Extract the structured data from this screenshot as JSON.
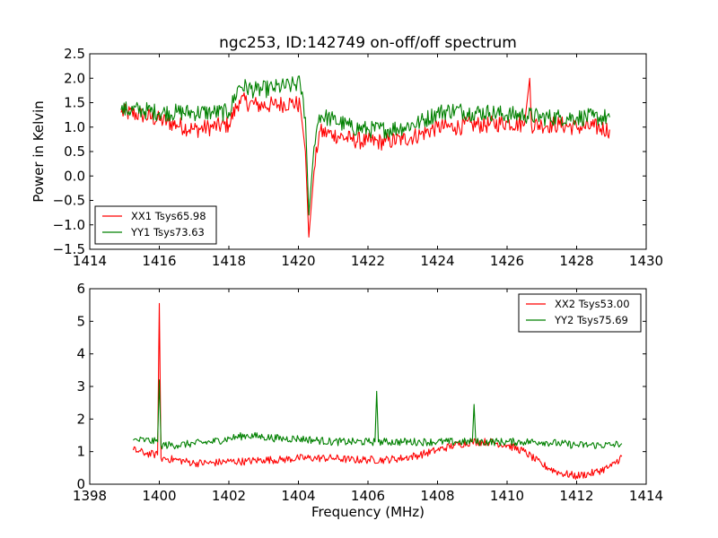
{
  "chart_data": [
    {
      "type": "line",
      "title": "ngc253, ID:142749 on-off/off spectrum",
      "xlabel": "",
      "ylabel": "Power in Kelvin",
      "xlim": [
        1414,
        1430
      ],
      "ylim": [
        -1.5,
        2.5
      ],
      "xticks": [
        "1414",
        "1416",
        "1418",
        "1420",
        "1422",
        "1424",
        "1426",
        "1428",
        "1430"
      ],
      "yticks": [
        "2.5",
        "2.0",
        "1.5",
        "1.0",
        "0.5",
        "0.0",
        "−0.5",
        "−1.0",
        "−1.5"
      ],
      "grid": false,
      "legend_position": "lower-left",
      "series": [
        {
          "name": "XX1 Tsys65.98",
          "color": "#ff0000",
          "x": [
            1414.9,
            1415.5,
            1416.0,
            1416.5,
            1417.0,
            1417.5,
            1418.0,
            1418.3,
            1418.8,
            1419.3,
            1419.8,
            1420.05,
            1420.2,
            1420.3,
            1420.45,
            1420.6,
            1421.0,
            1421.5,
            1422.0,
            1422.5,
            1423.0,
            1423.5,
            1424.0,
            1424.5,
            1425.0,
            1425.5,
            1426.0,
            1426.5,
            1426.65,
            1426.7,
            1427.0,
            1427.5,
            1428.0,
            1428.5,
            1428.95
          ],
          "y": [
            1.3,
            1.25,
            1.15,
            1.05,
            0.95,
            1.0,
            1.05,
            1.55,
            1.45,
            1.45,
            1.5,
            1.45,
            0.5,
            -1.25,
            0.1,
            0.9,
            0.85,
            0.75,
            0.7,
            0.7,
            0.75,
            0.85,
            1.0,
            1.0,
            1.05,
            1.05,
            1.1,
            1.05,
            2.0,
            1.05,
            1.05,
            1.05,
            1.0,
            1.0,
            0.95
          ]
        },
        {
          "name": "YY1 Tsys73.63",
          "color": "#008000",
          "x": [
            1414.9,
            1415.5,
            1416.0,
            1416.5,
            1417.0,
            1417.5,
            1418.0,
            1418.3,
            1418.8,
            1419.3,
            1419.8,
            1420.05,
            1420.2,
            1420.3,
            1420.45,
            1420.6,
            1421.0,
            1421.5,
            1422.0,
            1422.5,
            1423.0,
            1423.5,
            1424.0,
            1424.5,
            1425.0,
            1425.5,
            1426.0,
            1426.5,
            1427.0,
            1427.5,
            1428.0,
            1428.5,
            1428.95
          ],
          "y": [
            1.35,
            1.35,
            1.3,
            1.3,
            1.3,
            1.3,
            1.3,
            1.85,
            1.75,
            1.8,
            1.85,
            1.9,
            1.2,
            -0.8,
            0.6,
            1.25,
            1.15,
            1.0,
            0.95,
            0.95,
            1.0,
            1.1,
            1.3,
            1.35,
            1.3,
            1.3,
            1.25,
            1.25,
            1.2,
            1.2,
            1.2,
            1.2,
            1.2
          ]
        }
      ]
    },
    {
      "type": "line",
      "title": "",
      "xlabel": "Frequency (MHz)",
      "ylabel": "",
      "xlim": [
        1398,
        1414
      ],
      "ylim": [
        0,
        6
      ],
      "xticks": [
        "1398",
        "1400",
        "1402",
        "1404",
        "1406",
        "1408",
        "1410",
        "1412",
        "1414"
      ],
      "yticks": [
        "6",
        "5",
        "4",
        "3",
        "2",
        "1",
        "0"
      ],
      "grid": false,
      "legend_position": "upper-right",
      "series": [
        {
          "name": "XX2 Tsys53.00",
          "color": "#ff0000",
          "x": [
            1399.25,
            1399.6,
            1399.95,
            1400.0,
            1400.05,
            1400.5,
            1401.0,
            1401.5,
            1402.0,
            1402.5,
            1403.0,
            1403.5,
            1404.0,
            1404.5,
            1405.0,
            1405.5,
            1406.0,
            1406.5,
            1407.0,
            1407.5,
            1408.0,
            1408.5,
            1409.0,
            1409.5,
            1410.0,
            1410.5,
            1411.0,
            1411.5,
            1412.0,
            1412.5,
            1413.0,
            1413.3
          ],
          "y": [
            1.05,
            0.95,
            0.9,
            5.55,
            0.8,
            0.75,
            0.65,
            0.65,
            0.7,
            0.7,
            0.75,
            0.75,
            0.8,
            0.8,
            0.8,
            0.75,
            0.75,
            0.75,
            0.8,
            0.9,
            1.05,
            1.2,
            1.3,
            1.3,
            1.2,
            1.0,
            0.6,
            0.35,
            0.25,
            0.35,
            0.55,
            0.85
          ]
        },
        {
          "name": "YY2 Tsys75.69",
          "color": "#008000",
          "x": [
            1399.25,
            1399.6,
            1399.95,
            1400.0,
            1400.05,
            1400.5,
            1401.0,
            1401.5,
            1402.0,
            1402.5,
            1403.0,
            1403.5,
            1404.0,
            1404.5,
            1405.0,
            1405.5,
            1406.0,
            1406.2,
            1406.25,
            1406.3,
            1406.5,
            1407.0,
            1407.5,
            1408.0,
            1408.5,
            1409.0,
            1409.05,
            1409.1,
            1409.5,
            1410.0,
            1410.5,
            1411.0,
            1411.5,
            1412.0,
            1412.5,
            1413.0,
            1413.3
          ],
          "y": [
            1.35,
            1.35,
            1.3,
            3.2,
            1.2,
            1.2,
            1.25,
            1.3,
            1.4,
            1.5,
            1.45,
            1.4,
            1.4,
            1.35,
            1.3,
            1.3,
            1.3,
            1.3,
            2.85,
            1.3,
            1.3,
            1.3,
            1.3,
            1.3,
            1.3,
            1.3,
            2.45,
            1.3,
            1.3,
            1.3,
            1.3,
            1.3,
            1.25,
            1.2,
            1.2,
            1.2,
            1.25
          ]
        }
      ]
    }
  ]
}
